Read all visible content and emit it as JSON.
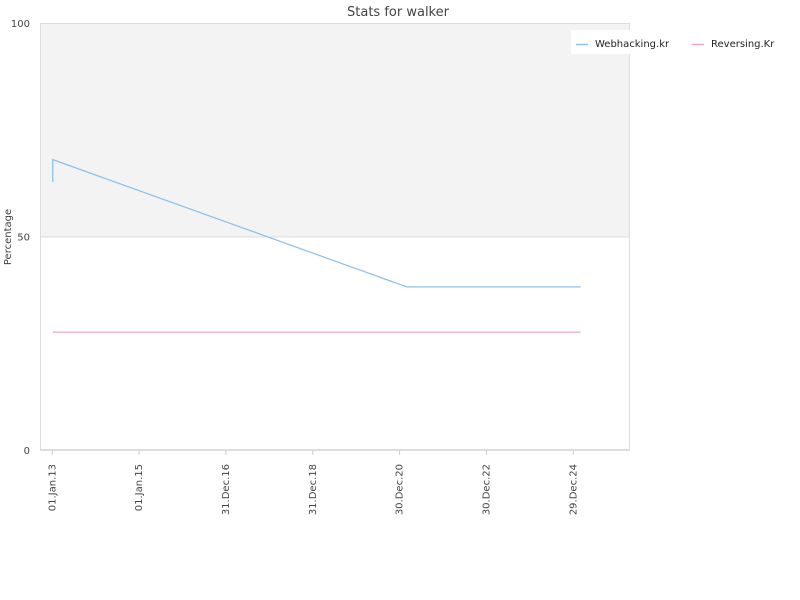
{
  "chart_data": {
    "type": "line",
    "title": "Stats for walker",
    "xlabel": "",
    "ylabel": "Percentage",
    "ylim": [
      0,
      100
    ],
    "yticks": [
      0,
      50,
      100
    ],
    "xlim": [
      "2012-09-20",
      "2026-04-20"
    ],
    "xticks": [
      "2013-01-01",
      "2015-01-01",
      "2016-12-31",
      "2018-12-31",
      "2020-12-30",
      "2022-12-30",
      "2024-12-29"
    ],
    "xtick_labels": [
      "01.Jan.13",
      "01.Jan.15",
      "31.Dec.16",
      "31.Dec.18",
      "30.Dec.20",
      "30.Dec.22",
      "29.Dec.24"
    ],
    "grid": true,
    "legend": "top-right",
    "series": [
      {
        "name": "Webhacking.kr",
        "color": "#8ec3ec",
        "points": [
          {
            "x": "2013-01-05",
            "y": 62.8
          },
          {
            "x": "2013-01-05",
            "y": 68.0
          },
          {
            "x": "2021-03-01",
            "y": 38.2
          },
          {
            "x": "2025-03-01",
            "y": 38.2
          }
        ]
      },
      {
        "name": "Reversing.Kr",
        "color": "#f0a7cf",
        "points": [
          {
            "x": "2013-01-05",
            "y": 27.6
          },
          {
            "x": "2025-03-01",
            "y": 27.6
          }
        ]
      }
    ]
  }
}
